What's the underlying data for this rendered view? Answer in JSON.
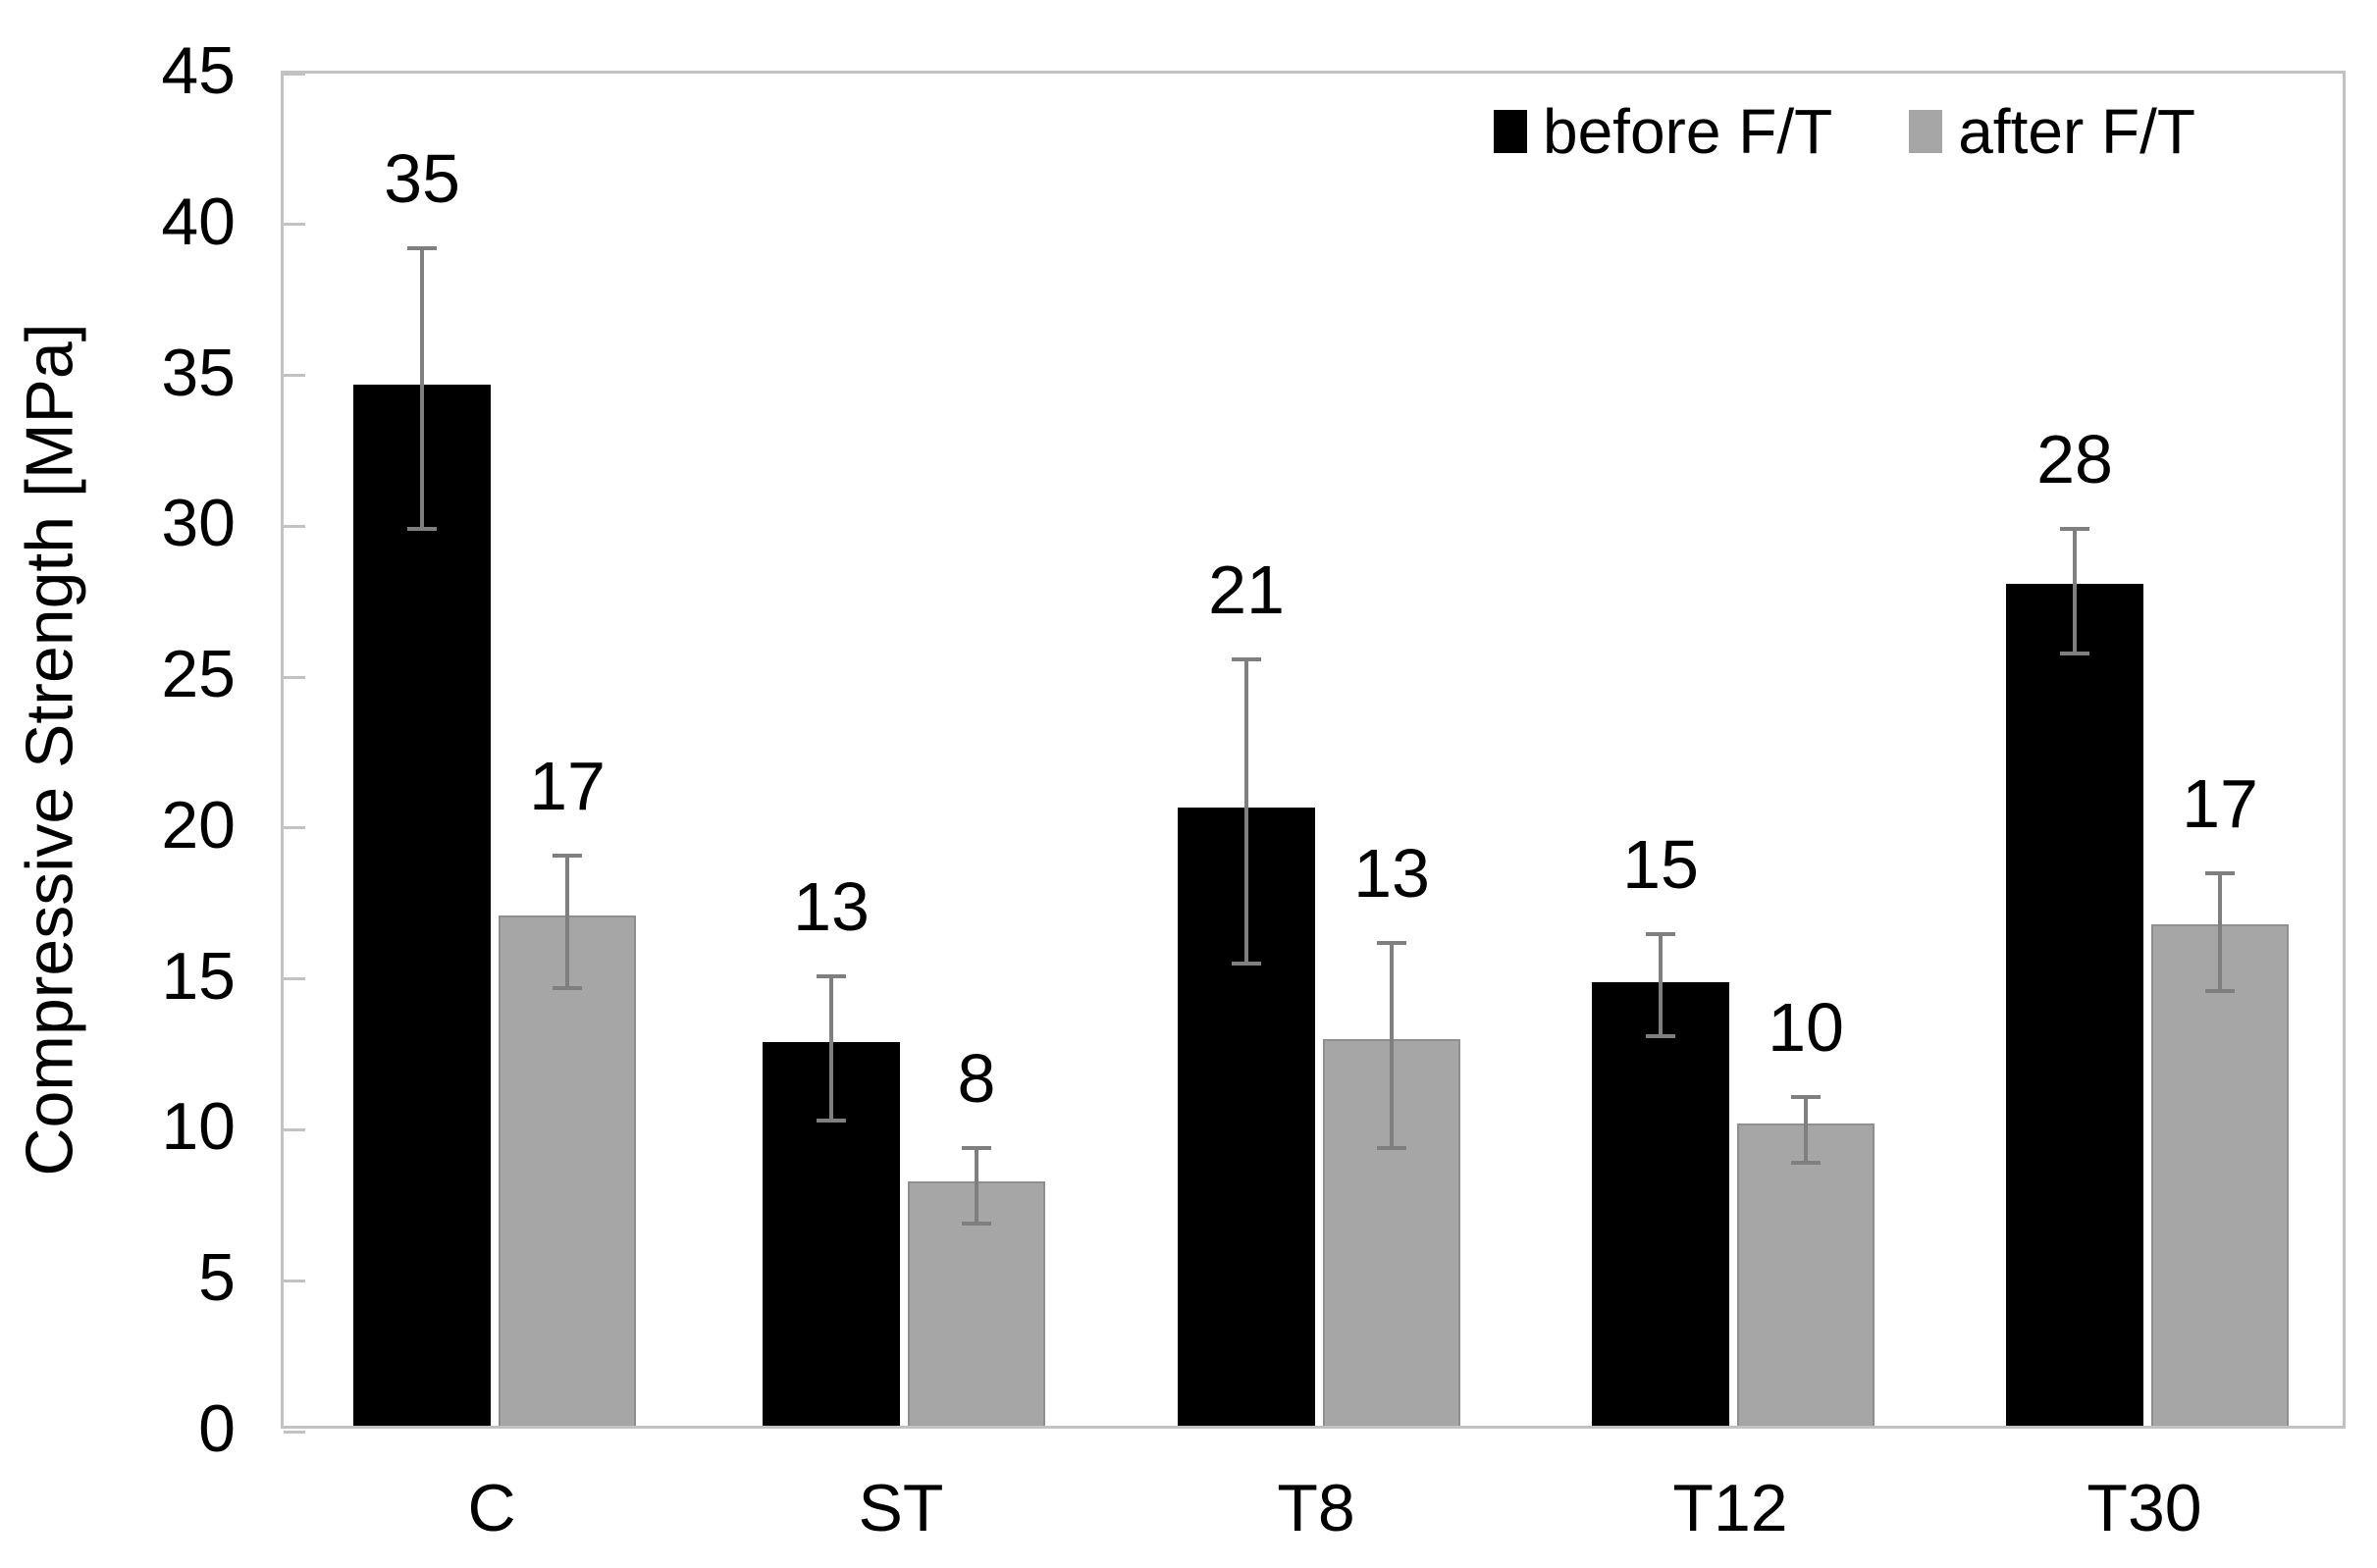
{
  "chart_data": {
    "type": "bar",
    "title": "",
    "xlabel": "",
    "ylabel": "Compressive Strength [MPa]",
    "ylim": [
      0,
      45
    ],
    "yticks": [
      0,
      5,
      10,
      15,
      20,
      25,
      30,
      35,
      40,
      45
    ],
    "grid": false,
    "legend_position": "top-right",
    "categories": [
      "C",
      "ST",
      "T8",
      "T12",
      "T30"
    ],
    "series": [
      {
        "name": "before F/T",
        "color": "#000000",
        "values": [
          34.5,
          12.7,
          20.5,
          14.7,
          27.9
        ],
        "data_labels": [
          "35",
          "13",
          "21",
          "15",
          "28"
        ],
        "error_high": [
          39.2,
          15.1,
          25.6,
          16.5,
          29.9
        ],
        "error_low": [
          29.9,
          10.3,
          15.5,
          13.1,
          25.8
        ]
      },
      {
        "name": "after F/T",
        "color": "#a6a6a6",
        "values": [
          16.9,
          8.1,
          12.8,
          10.0,
          16.6
        ],
        "data_labels": [
          "17",
          "8",
          "13",
          "10",
          "17"
        ],
        "error_high": [
          19.1,
          9.4,
          16.2,
          11.1,
          18.5
        ],
        "error_low": [
          14.7,
          6.9,
          9.4,
          8.9,
          14.6
        ]
      }
    ],
    "colors": {
      "axis_border": "#c2c2c2",
      "error_bar": "#7f7f7f",
      "text": "#000000",
      "background": "#ffffff"
    }
  }
}
